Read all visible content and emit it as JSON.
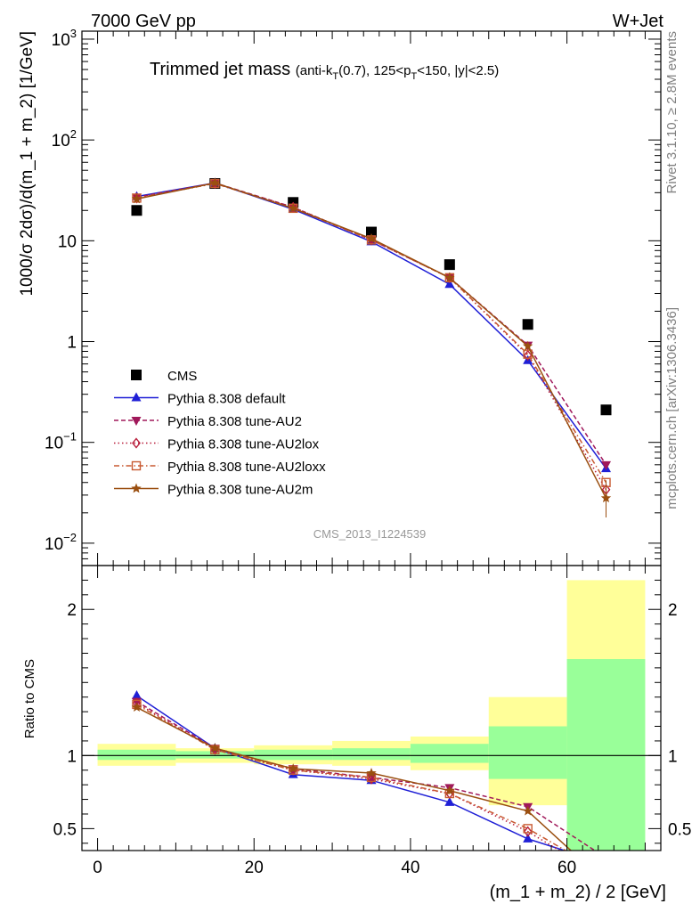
{
  "header": {
    "left": "7000 GeV pp",
    "right": "W+Jet"
  },
  "side_labels": {
    "rivet": "Rivet 3.1.10, ≥ 2.8M events",
    "mcplots": "mcplots.cern.ch [arXiv:1306.3436]"
  },
  "chart_data": [
    {
      "type": "scatter",
      "panel": "main",
      "title_main": "Trimmed jet mass",
      "title_sub": "(anti-k_T(0.7), 125<p_T<150, |y|<2.5)",
      "ylabel": "1000/σ 2dσ)/d(m_1 + m_2) [1/GeV]",
      "yscale": "log",
      "ylim": [
        0.006,
        1200
      ],
      "xlim": [
        -2,
        72
      ],
      "yticks": [
        {
          "v": 0.01,
          "base": "10",
          "exp": "−2"
        },
        {
          "v": 0.1,
          "base": "10",
          "exp": "−1"
        },
        {
          "v": 1,
          "base": "1",
          "exp": ""
        },
        {
          "v": 10,
          "base": "10",
          "exp": ""
        },
        {
          "v": 100,
          "base": "10",
          "exp": "2"
        },
        {
          "v": 1000,
          "base": "10",
          "exp": "3"
        }
      ],
      "analysis_label": "CMS_2013_I1224539",
      "x": [
        5,
        15,
        25,
        35,
        45,
        55,
        65
      ],
      "series": [
        {
          "name": "CMS",
          "color": "#000000",
          "marker": "square",
          "dash": "none",
          "values": [
            20,
            37,
            24,
            12.2,
            5.8,
            1.48,
            0.21
          ]
        },
        {
          "name": "Pythia 8.308 default",
          "color": "#1f1fd6",
          "marker": "triangle-up",
          "dash": "solid",
          "values": [
            27.5,
            37.5,
            20.5,
            9.8,
            3.7,
            0.65,
            0.055
          ]
        },
        {
          "name": "Pythia 8.308 tune-AU2",
          "color": "#a0185a",
          "marker": "triangle-down",
          "dash": "5,3",
          "values": [
            27,
            37.5,
            21.5,
            10.2,
            4.3,
            0.92,
            0.06
          ]
        },
        {
          "name": "Pythia 8.308 tune-AU2lox",
          "color": "#b81c3a",
          "marker": "diamond",
          "dash": "1.5,3",
          "values": [
            26.5,
            37,
            21.5,
            10.2,
            4.3,
            0.73,
            0.034
          ]
        },
        {
          "name": "Pythia 8.308 tune-AU2loxx",
          "color": "#c85a32",
          "marker": "square-open",
          "dash": "6,3,1.5,3",
          "values": [
            26.5,
            37,
            21,
            10.2,
            4.3,
            0.75,
            0.04
          ]
        },
        {
          "name": "Pythia 8.308 tune-AU2m",
          "color": "#9a4f10",
          "marker": "star",
          "dash": "solid",
          "values": [
            26,
            37.5,
            21,
            10.5,
            4.3,
            0.9,
            0.028
          ]
        }
      ]
    },
    {
      "type": "line",
      "panel": "ratio",
      "ylabel": "Ratio to CMS",
      "xlabel": "(m_1 + m_2) / 2 [GeV]",
      "ylim": [
        0.35,
        2.3
      ],
      "xlim": [
        -2,
        72
      ],
      "xticks": [
        0,
        20,
        40,
        60
      ],
      "yticks": [
        0.5,
        1,
        2
      ],
      "bands": [
        {
          "x0": 0,
          "x1": 10,
          "yellow": [
            0.93,
            1.08
          ],
          "green": [
            0.97,
            1.04
          ]
        },
        {
          "x0": 10,
          "x1": 20,
          "yellow": [
            0.95,
            1.05
          ],
          "green": [
            0.98,
            1.03
          ]
        },
        {
          "x0": 20,
          "x1": 30,
          "yellow": [
            0.94,
            1.07
          ],
          "green": [
            0.97,
            1.04
          ]
        },
        {
          "x0": 30,
          "x1": 40,
          "yellow": [
            0.93,
            1.1
          ],
          "green": [
            0.97,
            1.05
          ]
        },
        {
          "x0": 40,
          "x1": 50,
          "yellow": [
            0.9,
            1.13
          ],
          "green": [
            0.95,
            1.08
          ]
        },
        {
          "x0": 50,
          "x1": 60,
          "yellow": [
            0.66,
            1.4
          ],
          "green": [
            0.84,
            1.2
          ]
        },
        {
          "x0": 60,
          "x1": 70,
          "yellow": [
            0.35,
            2.2
          ],
          "green": [
            0.35,
            1.66
          ]
        }
      ],
      "x": [
        5,
        15,
        25,
        35,
        45,
        55,
        65
      ],
      "series": [
        {
          "name": "Pythia 8.308 default",
          "values": [
            1.41,
            1.05,
            0.87,
            0.83,
            0.68,
            0.43,
            0.26
          ]
        },
        {
          "name": "Pythia 8.308 tune-AU2",
          "values": [
            1.37,
            1.05,
            0.91,
            0.85,
            0.78,
            0.65,
            0.3
          ]
        },
        {
          "name": "Pythia 8.308 tune-AU2lox",
          "values": [
            1.36,
            1.04,
            0.9,
            0.84,
            0.74,
            0.48,
            0.16
          ]
        },
        {
          "name": "Pythia 8.308 tune-AU2loxx",
          "values": [
            1.35,
            1.04,
            0.9,
            0.85,
            0.74,
            0.5,
            0.19
          ]
        },
        {
          "name": "Pythia 8.308 tune-AU2m",
          "values": [
            1.33,
            1.05,
            0.91,
            0.88,
            0.76,
            0.62,
            0.13
          ]
        }
      ]
    }
  ]
}
